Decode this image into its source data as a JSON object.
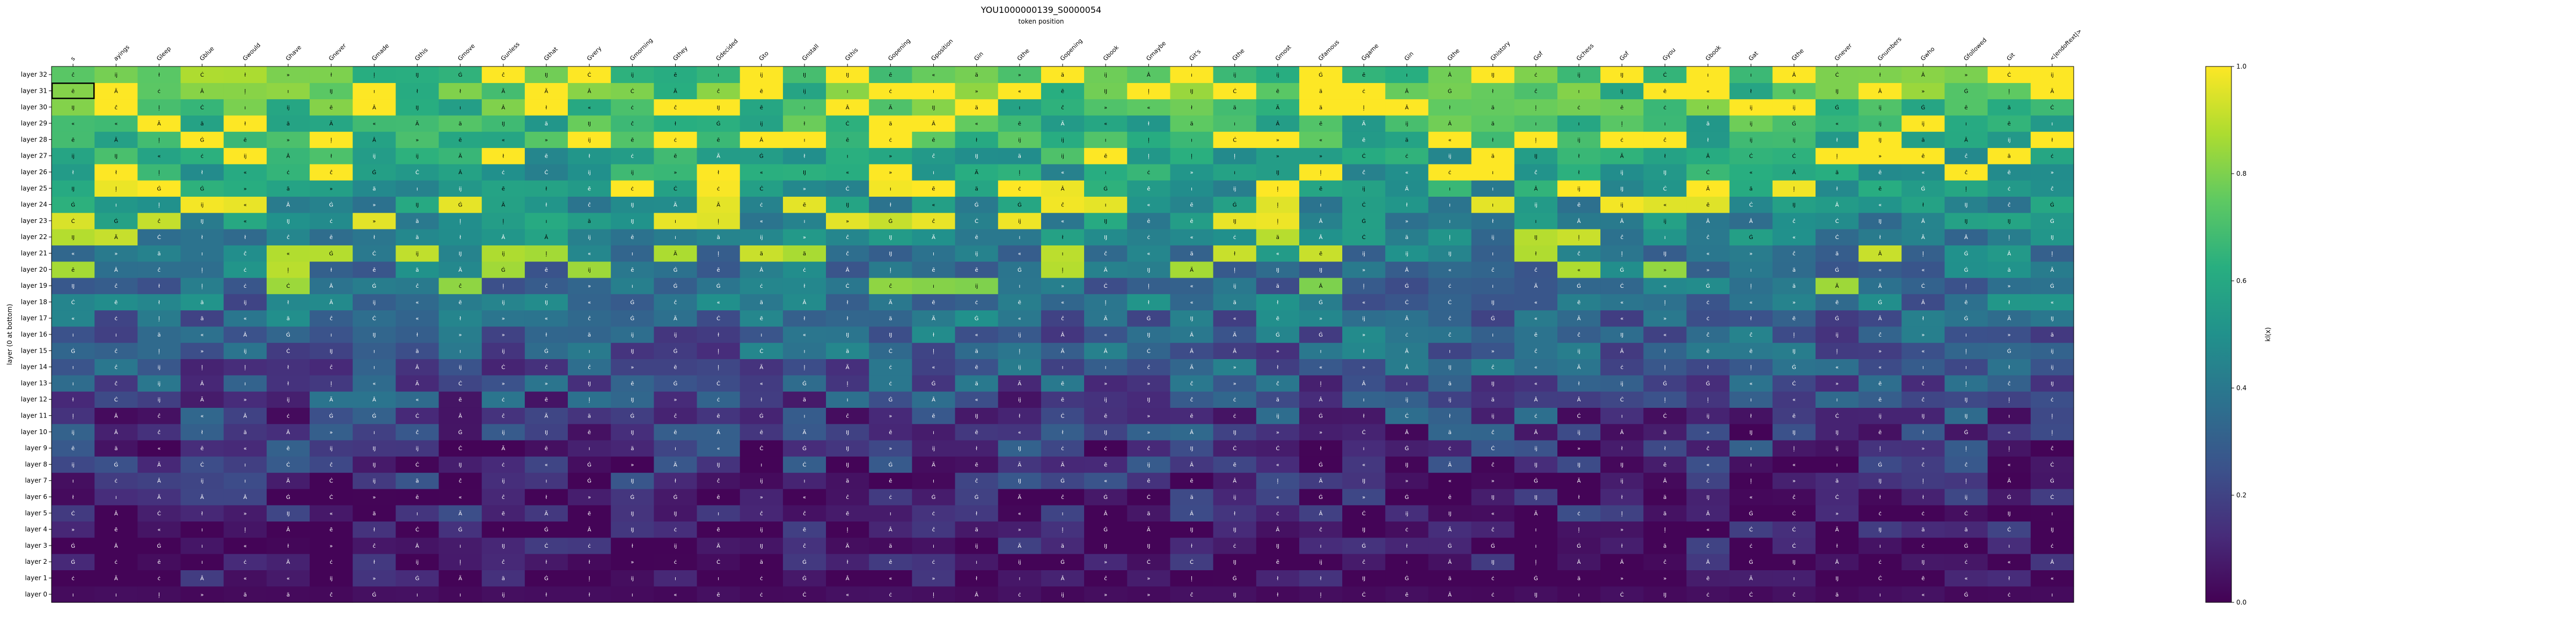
{
  "chart_data": {
    "type": "heatmap",
    "title": "YOU1000000139_S0000054",
    "xlabel": "token position",
    "ylabel": "layer (0 at bottom)",
    "colorbar_label": "kl(x)",
    "colorbar_ticks": [
      "0.0",
      "0.2",
      "0.4",
      "0.6",
      "0.8",
      "1.0"
    ],
    "colormap": "viridis",
    "zlim": [
      0,
      1
    ],
    "x": [
      "s",
      "ayings",
      "Gleep",
      "Gblue",
      "Gwould",
      "Ghave",
      "Gnever",
      "Gmade",
      "Gthis",
      "Gmove",
      "Gunless",
      "Gthat",
      "Gvery",
      "Gmorning",
      "Gthey",
      "Gdecided",
      "Gto",
      "Gnstall",
      "Gthis",
      "Gopening",
      "Gposition",
      "Gin",
      "Gthe",
      "Gopening",
      "Gbook",
      "Gmaybe",
      "Git's",
      "Gthe",
      "Gmost",
      "Gfamous",
      "Ggame",
      "Gin",
      "Gthe",
      "Ghistory",
      "Gof",
      "Gchess",
      "Gof",
      "Gyou",
      "Gbook",
      "Gat",
      "Gthe",
      "Gnever",
      "Gnumbers",
      "Gwho",
      "Gfollowed",
      "Git",
      "<|endoftext|>"
    ],
    "y": [
      "layer 0",
      "layer 1",
      "layer 2",
      "layer 3",
      "layer 4",
      "layer 5",
      "layer 6",
      "layer 7",
      "layer 8",
      "layer 9",
      "layer 10",
      "layer 11",
      "layer 12",
      "layer 13",
      "layer 14",
      "layer 15",
      "layer 16",
      "layer 17",
      "layer 18",
      "layer 19",
      "layer 20",
      "layer 21",
      "layer 22",
      "layer 23",
      "layer 24",
      "layer 25",
      "layer 26",
      "layer 27",
      "layer 28",
      "layer 29",
      "layer 30",
      "layer 31",
      "layer 32"
    ],
    "highlight": {
      "layer": "layer 31",
      "token": "s"
    },
    "cell_tokens": [
      "«",
      "Ä",
      "Â",
      "Ĳ",
      "Ġ",
      "Ċ",
      "ĉ",
      "ł",
      "ı",
      "ļ",
      "»",
      "ċ",
      "ĳ",
      "ä",
      "ē"
    ]
  }
}
